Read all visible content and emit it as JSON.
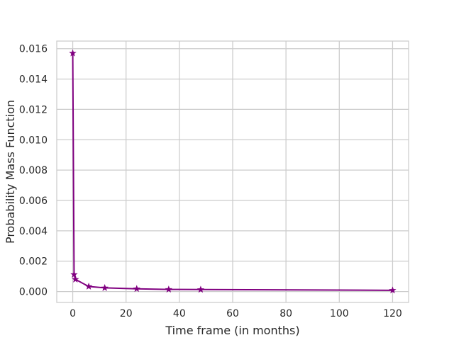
{
  "chart_data": {
    "type": "line",
    "title": "",
    "xlabel": "Time frame (in months)",
    "ylabel": "Probability Mass Function",
    "xlim": [
      -6,
      126
    ],
    "ylim": [
      -0.00072,
      0.0165
    ],
    "xticks": [
      0,
      20,
      40,
      60,
      80,
      100,
      120
    ],
    "xtick_labels": [
      "0",
      "20",
      "40",
      "60",
      "80",
      "100",
      "120"
    ],
    "yticks": [
      0.0,
      0.002,
      0.004,
      0.006,
      0.008,
      0.01,
      0.012,
      0.014,
      0.016
    ],
    "ytick_labels": [
      "0.000",
      "0.002",
      "0.004",
      "0.006",
      "0.008",
      "0.010",
      "0.012",
      "0.014",
      "0.016"
    ],
    "grid": true,
    "series": [
      {
        "color": "#800080",
        "marker": "star",
        "x": [
          0,
          0.5,
          1,
          6,
          12,
          24,
          36,
          48,
          120
        ],
        "y": [
          0.0157,
          0.00112,
          0.0008,
          0.00033,
          0.00024,
          0.00018,
          0.00014,
          0.00013,
          8e-05
        ]
      }
    ]
  }
}
